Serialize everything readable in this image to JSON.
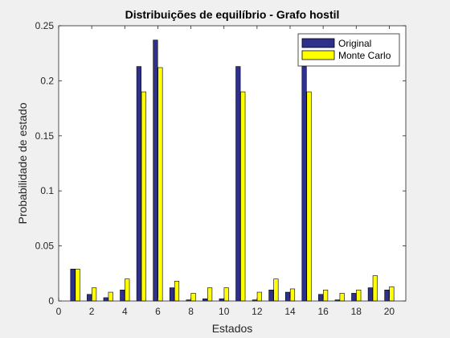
{
  "chart_data": {
    "type": "bar",
    "title": "Distribuições de equilíbrio - Grafo hostil",
    "xlabel": "Estados",
    "ylabel": "Probabilidade de estado",
    "xlim": [
      0,
      21
    ],
    "ylim": [
      0,
      0.25
    ],
    "xticks": [
      0,
      2,
      4,
      6,
      8,
      10,
      12,
      14,
      16,
      18,
      20
    ],
    "yticks": [
      0,
      0.05,
      0.1,
      0.15,
      0.2,
      0.25
    ],
    "ytick_labels": [
      "0",
      "0.05",
      "0.1",
      "0.15",
      "0.2",
      "0.25"
    ],
    "x": [
      1,
      2,
      3,
      4,
      5,
      6,
      7,
      8,
      9,
      10,
      11,
      12,
      13,
      14,
      15,
      16,
      17,
      18,
      19,
      20
    ],
    "series": [
      {
        "name": "Original",
        "color": "#2f2f8c",
        "values": [
          0.029,
          0.006,
          0.003,
          0.01,
          0.213,
          0.237,
          0.012,
          0.001,
          0.002,
          0.002,
          0.213,
          0.001,
          0.01,
          0.008,
          0.213,
          0.006,
          0.001,
          0.007,
          0.012,
          0.01
        ]
      },
      {
        "name": "Monte Carlo",
        "color": "#ffff00",
        "values": [
          0.029,
          0.012,
          0.008,
          0.02,
          0.19,
          0.212,
          0.018,
          0.007,
          0.012,
          0.012,
          0.19,
          0.008,
          0.02,
          0.011,
          0.19,
          0.01,
          0.007,
          0.01,
          0.023,
          0.013
        ]
      }
    ],
    "legend_position": "top-right",
    "grid": false
  }
}
